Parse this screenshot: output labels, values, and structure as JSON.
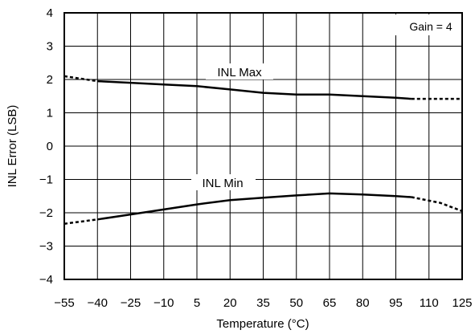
{
  "chart_data": {
    "type": "line",
    "xlabel": "Temperature (°C)",
    "ylabel": "INL Error (LSB)",
    "xlim": [
      -55,
      125
    ],
    "ylim": [
      -4,
      4
    ],
    "x_ticks": [
      "−55",
      "−40",
      "−25",
      "−10",
      "5",
      "20",
      "35",
      "50",
      "65",
      "80",
      "95",
      "110",
      "125"
    ],
    "y_ticks": [
      "4",
      "3",
      "2",
      "1",
      "0",
      "−1",
      "−2",
      "−3",
      "−4"
    ],
    "grid": true,
    "annotation": "Gain = 4",
    "series": [
      {
        "name": "INL Max",
        "solid": {
          "x": [
            -40,
            -25,
            -10,
            5,
            20,
            35,
            50,
            65,
            80,
            95,
            102
          ],
          "y": [
            1.95,
            1.9,
            1.85,
            1.8,
            1.7,
            1.6,
            1.55,
            1.55,
            1.5,
            1.45,
            1.42
          ]
        },
        "dashed_left": {
          "x": [
            -55,
            -40
          ],
          "y": [
            2.1,
            1.95
          ]
        },
        "dashed_right": {
          "x": [
            102,
            125
          ],
          "y": [
            1.42,
            1.42
          ]
        }
      },
      {
        "name": "INL Min",
        "solid": {
          "x": [
            -40,
            -25,
            -10,
            5,
            20,
            35,
            50,
            65,
            80,
            95,
            102
          ],
          "y": [
            -2.2,
            -2.05,
            -1.9,
            -1.75,
            -1.62,
            -1.55,
            -1.48,
            -1.42,
            -1.45,
            -1.5,
            -1.53
          ]
        },
        "dashed_left": {
          "x": [
            -55,
            -40
          ],
          "y": [
            -2.33,
            -2.2
          ]
        },
        "dashed_right": {
          "x": [
            102,
            115,
            125
          ],
          "y": [
            -1.53,
            -1.7,
            -1.95
          ]
        }
      }
    ]
  }
}
